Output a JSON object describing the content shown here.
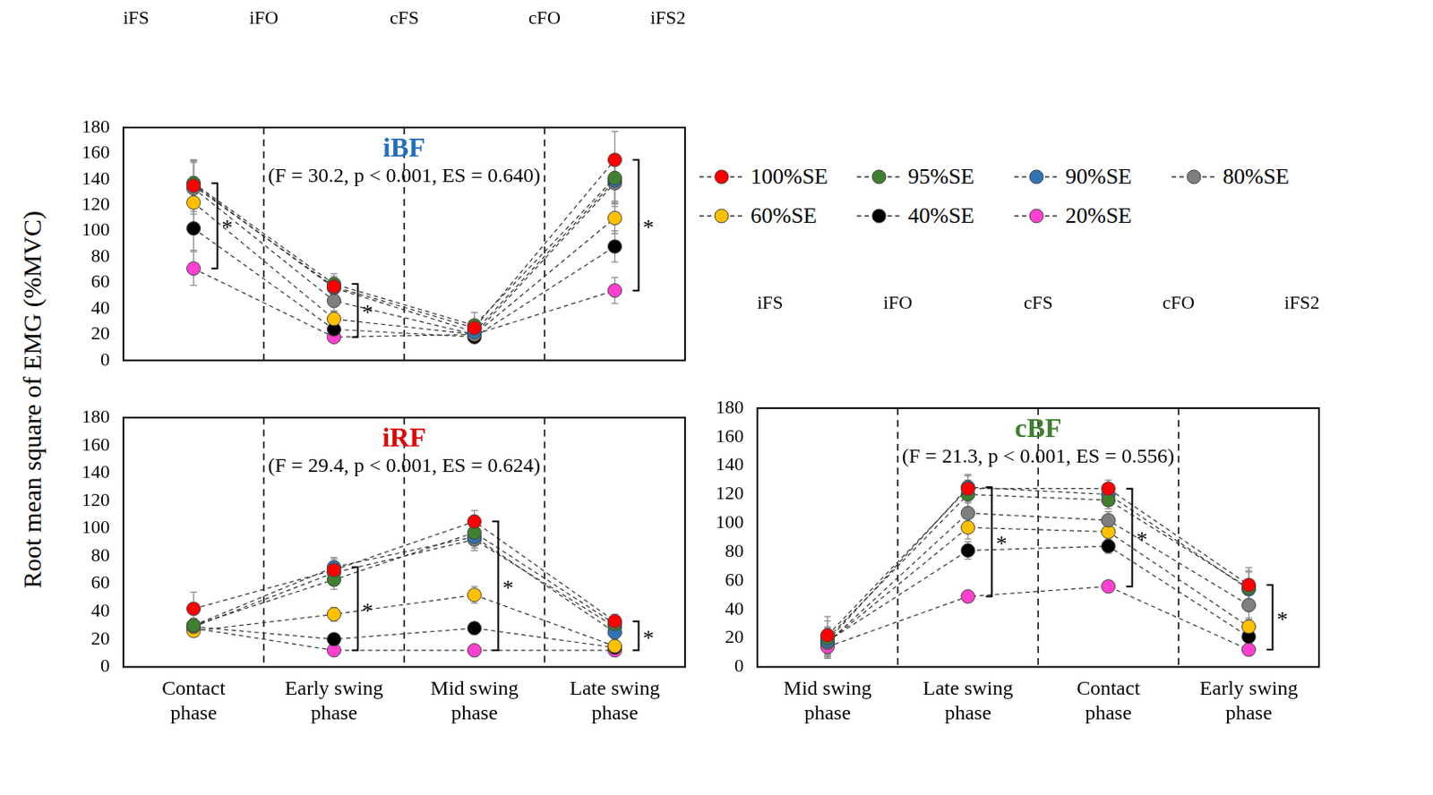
{
  "y_label": "Root mean square of EMG (%MVC)",
  "chart_data": [
    {
      "type": "line",
      "title": "iBF",
      "color": "#1f6fbf",
      "subtitle": "(F = 30.2, p < 0.001, ES = 0.640)",
      "events": [
        "iFS",
        "iFO",
        "cFS",
        "cFO",
        "iFS2"
      ],
      "categories": [
        "Contact phase",
        "Early swing phase",
        "Mid swing phase",
        "Late swing phase"
      ],
      "ylim": [
        0,
        180
      ],
      "yticks": [
        0,
        20,
        40,
        60,
        80,
        100,
        120,
        140,
        160,
        180
      ],
      "grid": false,
      "tick_labels": "y",
      "marker": "circle",
      "line_style": "dashed",
      "significance": [
        {
          "category": "Contact phase",
          "label": "*"
        },
        {
          "category": "Early swing phase",
          "label": "*"
        },
        {
          "category": "Late swing phase",
          "label": "*"
        }
      ],
      "series": [
        {
          "name": "100%SE",
          "color": "#ff0000",
          "values": [
            135,
            57,
            25,
            155
          ],
          "errors": [
            20,
            8,
            5,
            22
          ]
        },
        {
          "name": "95%SE",
          "color": "#3f7f2f",
          "values": [
            137,
            59,
            27,
            141
          ],
          "errors": [
            18,
            8,
            10,
            18
          ]
        },
        {
          "name": "90%SE",
          "color": "#2e75b6",
          "values": [
            136,
            56,
            22,
            139
          ],
          "errors": [
            18,
            7,
            5,
            18
          ]
        },
        {
          "name": "80%SE",
          "color": "#7f7f7f",
          "values": [
            133,
            46,
            20,
            137
          ],
          "errors": [
            20,
            8,
            5,
            18
          ]
        },
        {
          "name": "60%SE",
          "color": "#ffc000",
          "values": [
            122,
            32,
            20,
            110
          ],
          "errors": [
            20,
            6,
            4,
            12
          ]
        },
        {
          "name": "40%SE",
          "color": "#000000",
          "values": [
            102,
            24,
            18,
            88
          ],
          "errors": [
            17,
            5,
            3,
            12
          ]
        },
        {
          "name": "20%SE",
          "color": "#ff40d0",
          "values": [
            71,
            18,
            20,
            54
          ],
          "errors": [
            13,
            3,
            3,
            10
          ]
        }
      ]
    },
    {
      "type": "line",
      "title": "iRF",
      "color": "#e00000",
      "subtitle": "(F = 29.4, p < 0.001, ES = 0.624)",
      "categories": [
        "Contact phase",
        "Early swing phase",
        "Mid swing phase",
        "Late swing phase"
      ],
      "ylim": [
        0,
        180
      ],
      "yticks": [
        0,
        20,
        40,
        60,
        80,
        100,
        120,
        140,
        160,
        180
      ],
      "grid": false,
      "marker": "circle",
      "line_style": "dashed",
      "significance": [
        {
          "category": "Early swing phase",
          "label": "*"
        },
        {
          "category": "Mid swing phase",
          "label": "*"
        },
        {
          "category": "Late swing phase",
          "label": "*"
        }
      ],
      "series": [
        {
          "name": "100%SE",
          "color": "#ff0000",
          "values": [
            42,
            70,
            105,
            33
          ],
          "errors": [
            12,
            8,
            8,
            5
          ]
        },
        {
          "name": "95%SE",
          "color": "#3f7f2f",
          "values": [
            30,
            63,
            97,
            31
          ],
          "errors": [
            5,
            7,
            8,
            5
          ]
        },
        {
          "name": "90%SE",
          "color": "#2e75b6",
          "values": [
            30,
            72,
            94,
            25
          ],
          "errors": [
            5,
            7,
            8,
            5
          ]
        },
        {
          "name": "80%SE",
          "color": "#7f7f7f",
          "values": [
            29,
            68,
            92,
            29
          ],
          "errors": [
            5,
            7,
            8,
            5
          ]
        },
        {
          "name": "60%SE",
          "color": "#ffc000",
          "values": [
            26,
            38,
            52,
            15
          ],
          "errors": [
            4,
            5,
            6,
            3
          ]
        },
        {
          "name": "40%SE",
          "color": "#000000",
          "values": [
            29,
            20,
            28,
            14
          ],
          "errors": [
            5,
            3,
            3,
            3
          ]
        },
        {
          "name": "20%SE",
          "color": "#ff40d0",
          "values": [
            28,
            12,
            12,
            12
          ],
          "errors": [
            4,
            2,
            2,
            2
          ]
        }
      ]
    },
    {
      "type": "line",
      "title": "cBF",
      "color": "#3f7f2f",
      "subtitle": "(F = 21.3, p < 0.001, ES = 0.556)",
      "events": [
        "iFS",
        "iFO",
        "cFS",
        "cFO",
        "iFS2"
      ],
      "legend": "top right",
      "categories": [
        "Mid swing phase",
        "Late swing phase",
        "Contact phase",
        "Early swing phase"
      ],
      "ylim": [
        0,
        180
      ],
      "yticks": [
        0,
        20,
        40,
        60,
        80,
        100,
        120,
        140,
        160,
        180
      ],
      "grid": false,
      "marker": "circle",
      "line_style": "dashed",
      "significance": [
        {
          "category": "Late swing phase",
          "label": "*"
        },
        {
          "category": "Contact phase",
          "label": "*"
        },
        {
          "category": "Early swing phase",
          "label": "*"
        }
      ],
      "series": [
        {
          "name": "100%SE",
          "color": "#ff0000",
          "values": [
            22,
            124,
            124,
            57
          ],
          "errors": [
            13,
            10,
            6,
            12
          ]
        },
        {
          "name": "95%SE",
          "color": "#3f7f2f",
          "values": [
            20,
            120,
            116,
            55
          ],
          "errors": [
            12,
            10,
            6,
            12
          ]
        },
        {
          "name": "90%SE",
          "color": "#2e75b6",
          "values": [
            18,
            125,
            120,
            54
          ],
          "errors": [
            10,
            8,
            6,
            12
          ]
        },
        {
          "name": "80%SE",
          "color": "#7f7f7f",
          "values": [
            17,
            107,
            102,
            43
          ],
          "errors": [
            10,
            8,
            6,
            10
          ]
        },
        {
          "name": "60%SE",
          "color": "#ffc000",
          "values": [
            17,
            97,
            94,
            28
          ],
          "errors": [
            8,
            8,
            6,
            6
          ]
        },
        {
          "name": "40%SE",
          "color": "#000000",
          "values": [
            18,
            81,
            84,
            21
          ],
          "errors": [
            8,
            6,
            5,
            5
          ]
        },
        {
          "name": "20%SE",
          "color": "#ff40d0",
          "values": [
            14,
            49,
            56,
            12
          ],
          "errors": [
            8,
            4,
            4,
            4
          ]
        }
      ]
    }
  ]
}
